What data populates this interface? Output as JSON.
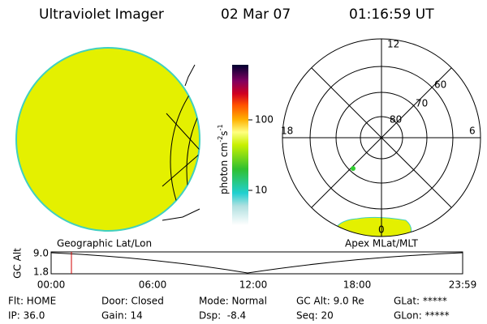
{
  "header": {
    "title": "Ultraviolet Imager",
    "date": "02 Mar 07",
    "time": "01:16:59 UT"
  },
  "colorbar": {
    "label": "photon cm",
    "exp1": "-2",
    "unit2": "s",
    "exp2": "-1",
    "ticks": [
      "100",
      "10"
    ]
  },
  "polar": {
    "mlt_labels": [
      "12",
      "18",
      "6",
      "0"
    ],
    "mlat_labels": [
      "80",
      "70",
      "60"
    ]
  },
  "timeline": {
    "left_label": "Geographic Lat/Lon",
    "right_label": "Apex MLat/MLT",
    "axis_label": "GC Alt",
    "y_labels": [
      "9.0",
      "1.8"
    ],
    "x_labels": [
      "00:00",
      "06:00",
      "12:00",
      "18:00",
      "23:59"
    ]
  },
  "status": {
    "rows": [
      [
        "Flt: HOME",
        "Door: Closed",
        "Mode: Normal",
        "GC Alt: 9.0 Re",
        "GLat: *****"
      ],
      [
        "IP: 36.0",
        "Gain: 14",
        "Dsp:  -8.4",
        "Seq: 20",
        "GLon: *****"
      ]
    ]
  }
}
